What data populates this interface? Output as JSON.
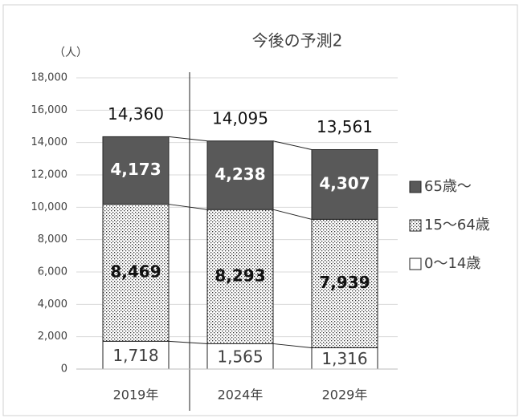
{
  "chart_data": {
    "type": "stacked_bar",
    "title": "今後の予測2",
    "y_label": "（人）",
    "categories": [
      "2019年",
      "2024年",
      "2029年"
    ],
    "series": [
      {
        "name": "0〜14歳",
        "color": "#ffffff",
        "values": [
          1718,
          1565,
          1316
        ],
        "value_labels": [
          "1,718",
          "1,565",
          "1,316"
        ]
      },
      {
        "name": "15〜64歳",
        "color": "#ffffff",
        "pattern": "dotted",
        "values": [
          8469,
          8293,
          7939
        ],
        "value_labels": [
          "8,469",
          "8,293",
          "7,939"
        ]
      },
      {
        "name": "65歳〜",
        "color": "#595959",
        "values": [
          4173,
          4238,
          4307
        ],
        "value_labels": [
          "4,173",
          "4,238",
          "4,307"
        ]
      }
    ],
    "totals": {
      "values": [
        14360,
        14095,
        13561
      ],
      "value_labels": [
        "14,360",
        "14,095",
        "13,561"
      ]
    },
    "ylim": [
      0,
      18000
    ],
    "yticks": [
      0,
      {
        "value": 2000,
        "label": "2,000"
      },
      {
        "value": 4000,
        "label": "4,000"
      },
      {
        "value": 6000,
        "label": "6,000"
      },
      {
        "value": 8000,
        "label": "8,000"
      },
      {
        "value": 10000,
        "label": "10,000"
      },
      {
        "value": 12000,
        "label": "12,000"
      },
      {
        "value": 14000,
        "label": "14,000"
      },
      {
        "value": 16000,
        "label": "16,000"
      },
      {
        "value": 18000,
        "label": "18,000"
      }
    ],
    "grid": true,
    "legend": "right"
  }
}
